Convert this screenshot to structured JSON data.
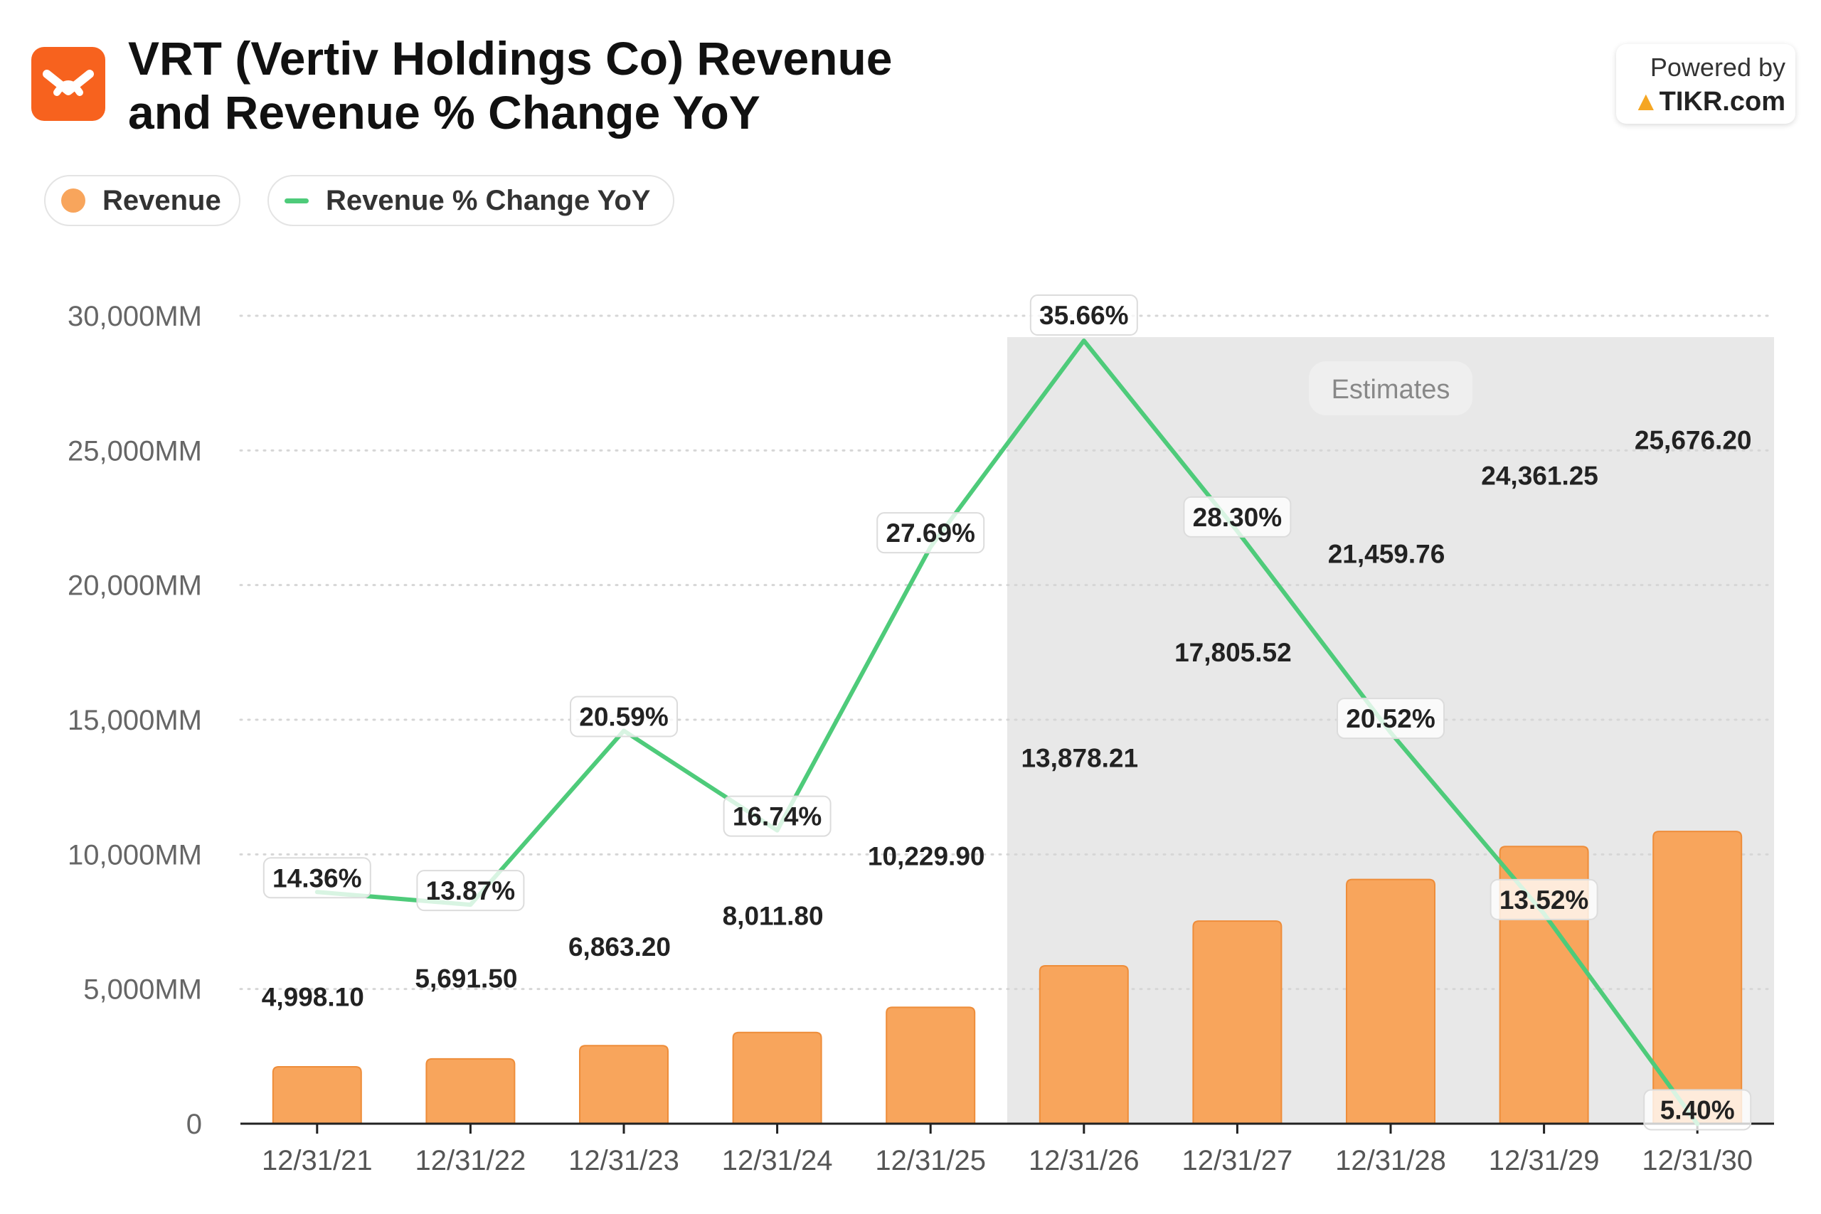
{
  "header": {
    "title_line1": "VRT (Vertiv Holdings Co) Revenue",
    "title_line2": "and Revenue % Change YoY",
    "powered_by": "Powered by",
    "brand": "TIKR.com"
  },
  "legend": {
    "revenue": "Revenue",
    "change": "Revenue % Change YoY"
  },
  "estimates_label": "Estimates",
  "colors": {
    "bar": "#f8a55c",
    "bar_stroke": "#ee8d3a",
    "line": "#4ecb7a",
    "estimates_bg": "#e8e8e8",
    "brand": "#f7621e"
  },
  "chart_data": {
    "type": "bar",
    "categories": [
      "12/31/21",
      "12/31/22",
      "12/31/23",
      "12/31/24",
      "12/31/25",
      "12/31/26",
      "12/31/27",
      "12/31/28",
      "12/31/29",
      "12/31/30"
    ],
    "series": [
      {
        "name": "Revenue",
        "type": "bar",
        "values": [
          4998.1,
          5691.5,
          6863.2,
          8011.8,
          10229.9,
          13878.21,
          17805.52,
          21459.76,
          24361.25,
          25676.2
        ],
        "labels": [
          "4,998.10",
          "5,691.50",
          "6,863.20",
          "8,011.80",
          "10,229.90",
          "13,878.21",
          "17,805.52",
          "21,459.76",
          "24,361.25",
          "25,676.20"
        ]
      },
      {
        "name": "Revenue % Change YoY",
        "type": "line",
        "values": [
          14.36,
          13.87,
          20.59,
          16.74,
          27.69,
          35.66,
          28.3,
          20.52,
          13.52,
          5.4
        ],
        "labels": [
          "14.36%",
          "13.87%",
          "20.59%",
          "16.74%",
          "27.69%",
          "35.66%",
          "28.30%",
          "20.52%",
          "13.52%",
          "5.40%"
        ]
      }
    ],
    "y_ticks": [
      "0",
      "5,000MM",
      "10,000MM",
      "15,000MM",
      "20,000MM",
      "25,000MM",
      "30,000MM"
    ],
    "estimates_from": "12/31/26",
    "grid": true,
    "legend_position": "top-left"
  }
}
